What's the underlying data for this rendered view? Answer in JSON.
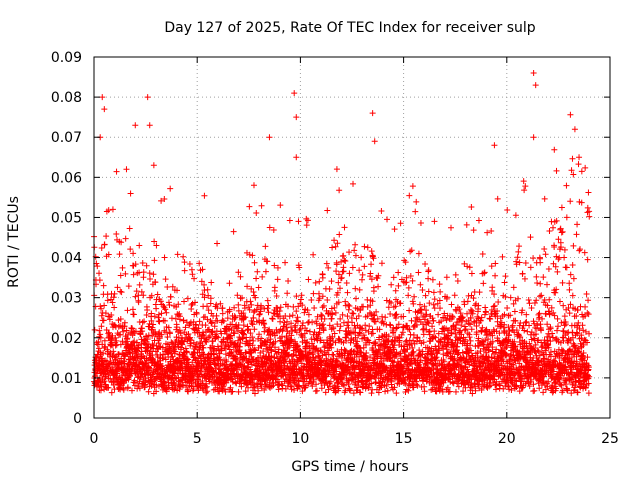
{
  "chart_data": {
    "type": "scatter",
    "title": "Day 127 of 2025, Rate Of TEC Index for receiver sulp",
    "xlabel": "GPS time / hours",
    "ylabel": "ROTI / TECUs",
    "xlim": [
      0,
      25
    ],
    "ylim": [
      0,
      0.09
    ],
    "x_ticks": [
      0,
      5,
      10,
      15,
      20,
      25
    ],
    "x_tick_labels": [
      "0",
      "5",
      "10",
      "15",
      "20",
      "25"
    ],
    "y_ticks": [
      0,
      0.01,
      0.02,
      0.03,
      0.04,
      0.05,
      0.06,
      0.07,
      0.08,
      0.09
    ],
    "y_tick_labels": [
      "0",
      "0.01",
      "0.02",
      "0.03",
      "0.04",
      "0.05",
      "0.06",
      "0.07",
      "0.08",
      "0.09"
    ],
    "grid": true,
    "marker": "+",
    "color": "#ff0000",
    "data_x_range": [
      0,
      24
    ],
    "series": [
      {
        "name": "ROTI",
        "notable_points": [
          {
            "x": 0.4,
            "y": 0.08
          },
          {
            "x": 0.5,
            "y": 0.077
          },
          {
            "x": 0.3,
            "y": 0.07
          },
          {
            "x": 2.6,
            "y": 0.08
          },
          {
            "x": 2.7,
            "y": 0.073
          },
          {
            "x": 2.9,
            "y": 0.063
          },
          {
            "x": 9.7,
            "y": 0.081
          },
          {
            "x": 9.8,
            "y": 0.075
          },
          {
            "x": 9.8,
            "y": 0.065
          },
          {
            "x": 13.5,
            "y": 0.076
          },
          {
            "x": 13.6,
            "y": 0.069
          },
          {
            "x": 21.3,
            "y": 0.086
          },
          {
            "x": 21.4,
            "y": 0.083
          },
          {
            "x": 21.3,
            "y": 0.07
          },
          {
            "x": 23.3,
            "y": 0.072
          },
          {
            "x": 23.5,
            "y": 0.065
          },
          {
            "x": 8.5,
            "y": 0.07
          },
          {
            "x": 19.4,
            "y": 0.068
          },
          {
            "x": 2.0,
            "y": 0.073
          }
        ]
      }
    ]
  }
}
